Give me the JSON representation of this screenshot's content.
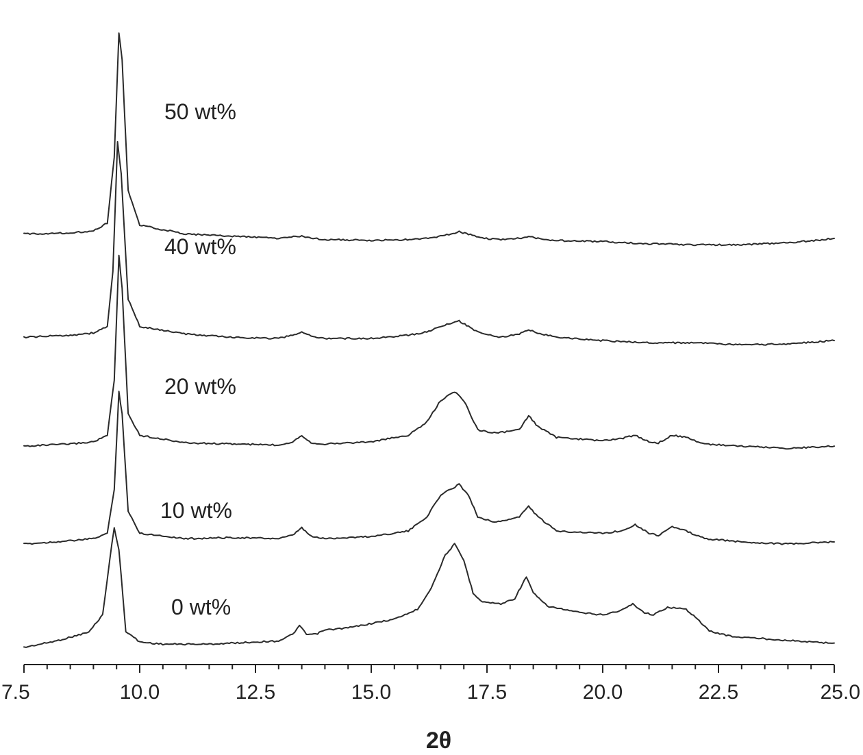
{
  "chart_data": {
    "type": "line",
    "title": "",
    "xlabel": "2θ",
    "ylabel": "",
    "xlim": [
      7.5,
      25.0
    ],
    "ylim": [
      0,
      5.9
    ],
    "xticks": [
      7.5,
      10.0,
      12.5,
      15.0,
      17.5,
      20.0,
      22.5,
      25.0
    ],
    "xtick_labels": [
      "7.5",
      "10.0",
      "12.5",
      "15.0",
      "17.5",
      "20.0",
      "22.5",
      "25.0"
    ],
    "grid": false,
    "legend": "none",
    "series": [
      {
        "name": "0 wt%",
        "offset": 0.0,
        "points": [
          [
            7.5,
            0.0
          ],
          [
            8.2,
            0.06
          ],
          [
            8.9,
            0.14
          ],
          [
            9.2,
            0.3
          ],
          [
            9.35,
            0.8
          ],
          [
            9.45,
            1.1
          ],
          [
            9.55,
            0.9
          ],
          [
            9.7,
            0.15
          ],
          [
            10.0,
            0.05
          ],
          [
            10.5,
            0.03
          ],
          [
            11.5,
            0.03
          ],
          [
            12.5,
            0.05
          ],
          [
            13.0,
            0.06
          ],
          [
            13.3,
            0.12
          ],
          [
            13.45,
            0.2
          ],
          [
            13.6,
            0.12
          ],
          [
            13.8,
            0.12
          ],
          [
            14.0,
            0.16
          ],
          [
            14.5,
            0.18
          ],
          [
            15.0,
            0.22
          ],
          [
            15.5,
            0.26
          ],
          [
            16.0,
            0.35
          ],
          [
            16.3,
            0.55
          ],
          [
            16.6,
            0.85
          ],
          [
            16.8,
            0.95
          ],
          [
            17.0,
            0.8
          ],
          [
            17.2,
            0.5
          ],
          [
            17.4,
            0.42
          ],
          [
            17.8,
            0.4
          ],
          [
            18.1,
            0.45
          ],
          [
            18.35,
            0.65
          ],
          [
            18.5,
            0.5
          ],
          [
            18.8,
            0.38
          ],
          [
            19.5,
            0.32
          ],
          [
            20.0,
            0.3
          ],
          [
            20.4,
            0.34
          ],
          [
            20.65,
            0.4
          ],
          [
            20.9,
            0.32
          ],
          [
            21.1,
            0.3
          ],
          [
            21.4,
            0.37
          ],
          [
            21.8,
            0.35
          ],
          [
            22.0,
            0.28
          ],
          [
            22.3,
            0.15
          ],
          [
            22.8,
            0.1
          ],
          [
            23.5,
            0.08
          ],
          [
            24.5,
            0.05
          ],
          [
            25.0,
            0.04
          ]
        ]
      },
      {
        "name": "10 wt%",
        "offset": 0.95,
        "points": [
          [
            7.5,
            0.0
          ],
          [
            8.5,
            0.03
          ],
          [
            9.0,
            0.05
          ],
          [
            9.3,
            0.1
          ],
          [
            9.45,
            0.5
          ],
          [
            9.55,
            1.4
          ],
          [
            9.62,
            1.2
          ],
          [
            9.75,
            0.3
          ],
          [
            10.0,
            0.1
          ],
          [
            11.0,
            0.05
          ],
          [
            12.0,
            0.06
          ],
          [
            13.0,
            0.05
          ],
          [
            13.3,
            0.08
          ],
          [
            13.5,
            0.15
          ],
          [
            13.7,
            0.07
          ],
          [
            14.0,
            0.05
          ],
          [
            15.0,
            0.07
          ],
          [
            15.8,
            0.12
          ],
          [
            16.2,
            0.25
          ],
          [
            16.5,
            0.45
          ],
          [
            16.9,
            0.55
          ],
          [
            17.1,
            0.45
          ],
          [
            17.3,
            0.25
          ],
          [
            17.7,
            0.2
          ],
          [
            18.2,
            0.25
          ],
          [
            18.4,
            0.35
          ],
          [
            18.6,
            0.25
          ],
          [
            19.0,
            0.12
          ],
          [
            20.0,
            0.1
          ],
          [
            20.4,
            0.12
          ],
          [
            20.7,
            0.18
          ],
          [
            21.0,
            0.1
          ],
          [
            21.2,
            0.08
          ],
          [
            21.5,
            0.16
          ],
          [
            21.8,
            0.12
          ],
          [
            22.2,
            0.05
          ],
          [
            23.0,
            0.02
          ],
          [
            24.0,
            0.0
          ],
          [
            25.0,
            0.02
          ]
        ]
      },
      {
        "name": "20 wt%",
        "offset": 1.85,
        "points": [
          [
            7.5,
            0.0
          ],
          [
            8.5,
            0.02
          ],
          [
            9.0,
            0.04
          ],
          [
            9.3,
            0.1
          ],
          [
            9.45,
            0.6
          ],
          [
            9.55,
            1.75
          ],
          [
            9.62,
            1.45
          ],
          [
            9.75,
            0.3
          ],
          [
            10.0,
            0.1
          ],
          [
            11.0,
            0.03
          ],
          [
            12.0,
            0.02
          ],
          [
            13.0,
            0.01
          ],
          [
            13.3,
            0.04
          ],
          [
            13.5,
            0.1
          ],
          [
            13.7,
            0.03
          ],
          [
            14.0,
            0.02
          ],
          [
            15.0,
            0.04
          ],
          [
            15.8,
            0.1
          ],
          [
            16.2,
            0.22
          ],
          [
            16.5,
            0.42
          ],
          [
            16.8,
            0.5
          ],
          [
            17.0,
            0.42
          ],
          [
            17.3,
            0.15
          ],
          [
            17.7,
            0.12
          ],
          [
            18.2,
            0.15
          ],
          [
            18.4,
            0.28
          ],
          [
            18.6,
            0.18
          ],
          [
            19.0,
            0.08
          ],
          [
            20.0,
            0.05
          ],
          [
            20.4,
            0.07
          ],
          [
            20.7,
            0.1
          ],
          [
            21.0,
            0.04
          ],
          [
            21.2,
            0.03
          ],
          [
            21.5,
            0.1
          ],
          [
            21.8,
            0.08
          ],
          [
            22.2,
            0.02
          ],
          [
            23.0,
            0.0
          ],
          [
            24.0,
            -0.02
          ],
          [
            25.0,
            0.0
          ]
        ]
      },
      {
        "name": "40 wt%",
        "offset": 2.85,
        "points": [
          [
            7.5,
            0.0
          ],
          [
            8.5,
            0.02
          ],
          [
            9.0,
            0.04
          ],
          [
            9.3,
            0.1
          ],
          [
            9.42,
            0.6
          ],
          [
            9.52,
            1.8
          ],
          [
            9.6,
            1.5
          ],
          [
            9.75,
            0.35
          ],
          [
            10.0,
            0.1
          ],
          [
            11.0,
            0.03
          ],
          [
            12.0,
            0.0
          ],
          [
            13.0,
            -0.01
          ],
          [
            13.3,
            0.02
          ],
          [
            13.5,
            0.05
          ],
          [
            13.7,
            0.01
          ],
          [
            14.0,
            -0.01
          ],
          [
            15.0,
            -0.01
          ],
          [
            15.8,
            0.02
          ],
          [
            16.2,
            0.05
          ],
          [
            16.5,
            0.1
          ],
          [
            16.9,
            0.15
          ],
          [
            17.1,
            0.1
          ],
          [
            17.3,
            0.05
          ],
          [
            17.8,
            0.0
          ],
          [
            18.2,
            0.03
          ],
          [
            18.4,
            0.07
          ],
          [
            18.6,
            0.04
          ],
          [
            19.0,
            0.0
          ],
          [
            20.0,
            -0.03
          ],
          [
            21.0,
            -0.05
          ],
          [
            22.0,
            -0.05
          ],
          [
            23.0,
            -0.07
          ],
          [
            24.0,
            -0.06
          ],
          [
            25.0,
            -0.03
          ]
        ]
      },
      {
        "name": "50 wt%",
        "offset": 3.8,
        "points": [
          [
            7.5,
            0.0
          ],
          [
            8.5,
            0.01
          ],
          [
            9.0,
            0.03
          ],
          [
            9.3,
            0.1
          ],
          [
            9.45,
            0.7
          ],
          [
            9.55,
            1.85
          ],
          [
            9.62,
            1.6
          ],
          [
            9.75,
            0.4
          ],
          [
            10.0,
            0.08
          ],
          [
            11.0,
            0.0
          ],
          [
            12.0,
            -0.02
          ],
          [
            13.0,
            -0.04
          ],
          [
            13.5,
            -0.02
          ],
          [
            13.7,
            -0.04
          ],
          [
            14.0,
            -0.05
          ],
          [
            15.0,
            -0.06
          ],
          [
            16.0,
            -0.05
          ],
          [
            16.5,
            -0.02
          ],
          [
            16.9,
            0.02
          ],
          [
            17.1,
            0.0
          ],
          [
            17.4,
            -0.04
          ],
          [
            17.8,
            -0.05
          ],
          [
            18.2,
            -0.04
          ],
          [
            18.4,
            -0.02
          ],
          [
            18.6,
            -0.04
          ],
          [
            19.0,
            -0.06
          ],
          [
            20.0,
            -0.07
          ],
          [
            21.0,
            -0.09
          ],
          [
            22.0,
            -0.1
          ],
          [
            23.0,
            -0.1
          ],
          [
            24.0,
            -0.08
          ],
          [
            24.6,
            -0.06
          ],
          [
            25.0,
            -0.04
          ]
        ]
      }
    ]
  }
}
